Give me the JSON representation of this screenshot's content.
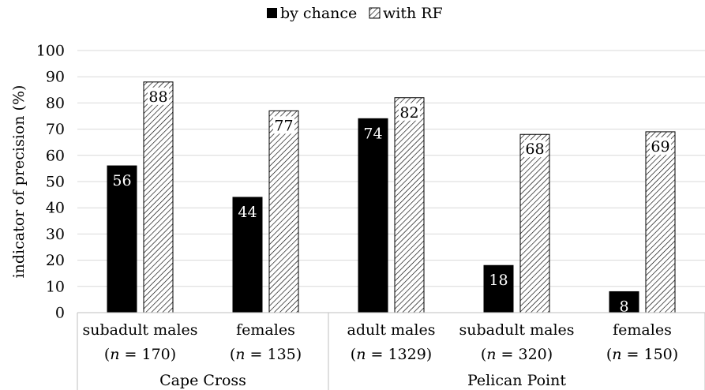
{
  "chart_data": {
    "type": "bar",
    "ylabel": "indicator of precision (%)",
    "ylim": [
      0,
      100
    ],
    "yticks": [
      0,
      10,
      20,
      30,
      40,
      50,
      60,
      70,
      80,
      90,
      100
    ],
    "grid": true,
    "legend_position": "top",
    "categories": [
      {
        "line1": "subadult males",
        "n": "170"
      },
      {
        "line1": "females",
        "n": "135"
      },
      {
        "line1": "adult males",
        "n": "1329"
      },
      {
        "line1": "subadult males",
        "n": "320"
      },
      {
        "line1": "females",
        "n": "150"
      }
    ],
    "n_prefix": "n",
    "groups": [
      {
        "name": "Cape Cross",
        "count": 2
      },
      {
        "name": "Pelican Point",
        "count": 3
      }
    ],
    "series": [
      {
        "name": "by chance",
        "values": [
          56,
          44,
          74,
          18,
          8
        ],
        "labels": [
          "56",
          "44",
          "74",
          "18",
          "8"
        ],
        "color": "#000000",
        "pattern": "solid"
      },
      {
        "name": "with RF",
        "values": [
          88,
          77,
          82,
          68,
          69
        ],
        "labels": [
          "88",
          "77",
          "82",
          "68",
          "69"
        ],
        "color": "#000000",
        "pattern": "diagonal-hatch"
      }
    ]
  }
}
